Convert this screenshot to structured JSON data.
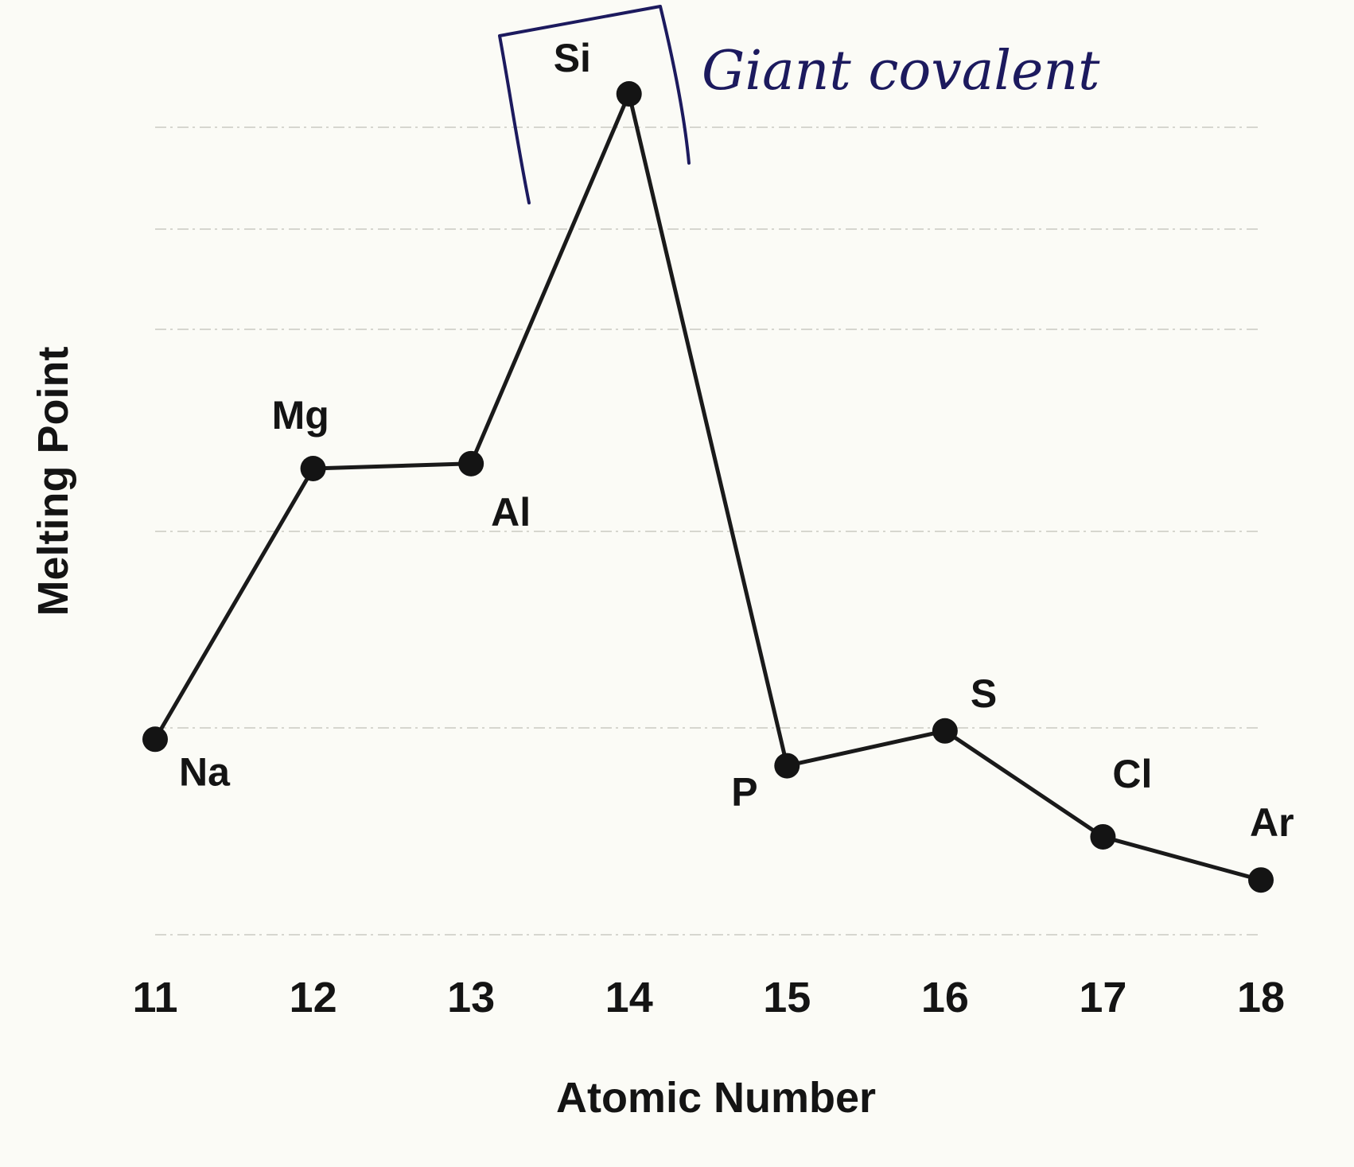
{
  "chart_data": {
    "type": "line",
    "title": "",
    "xlabel": "Atomic Number",
    "ylabel": "Melting Point",
    "x": [
      11,
      12,
      13,
      14,
      15,
      16,
      17,
      18
    ],
    "point_labels": [
      "Na",
      "Mg",
      "Al",
      "Si",
      "P",
      "S",
      "Cl",
      "Ar"
    ],
    "series": [
      {
        "values": [
          371,
          923,
          933,
          1687,
          317,
          388,
          172,
          84
        ]
      }
    ],
    "xlim": [
      11,
      18
    ],
    "ylim": [
      0,
      1700
    ],
    "grid": true,
    "y_tick_labels_shown": false,
    "annotation": {
      "text": "Giant covalent",
      "target": "Si",
      "style": "handwritten bracket"
    },
    "colors": {
      "line": "#1a1a1a",
      "annotation": "#1c1a5e"
    }
  }
}
